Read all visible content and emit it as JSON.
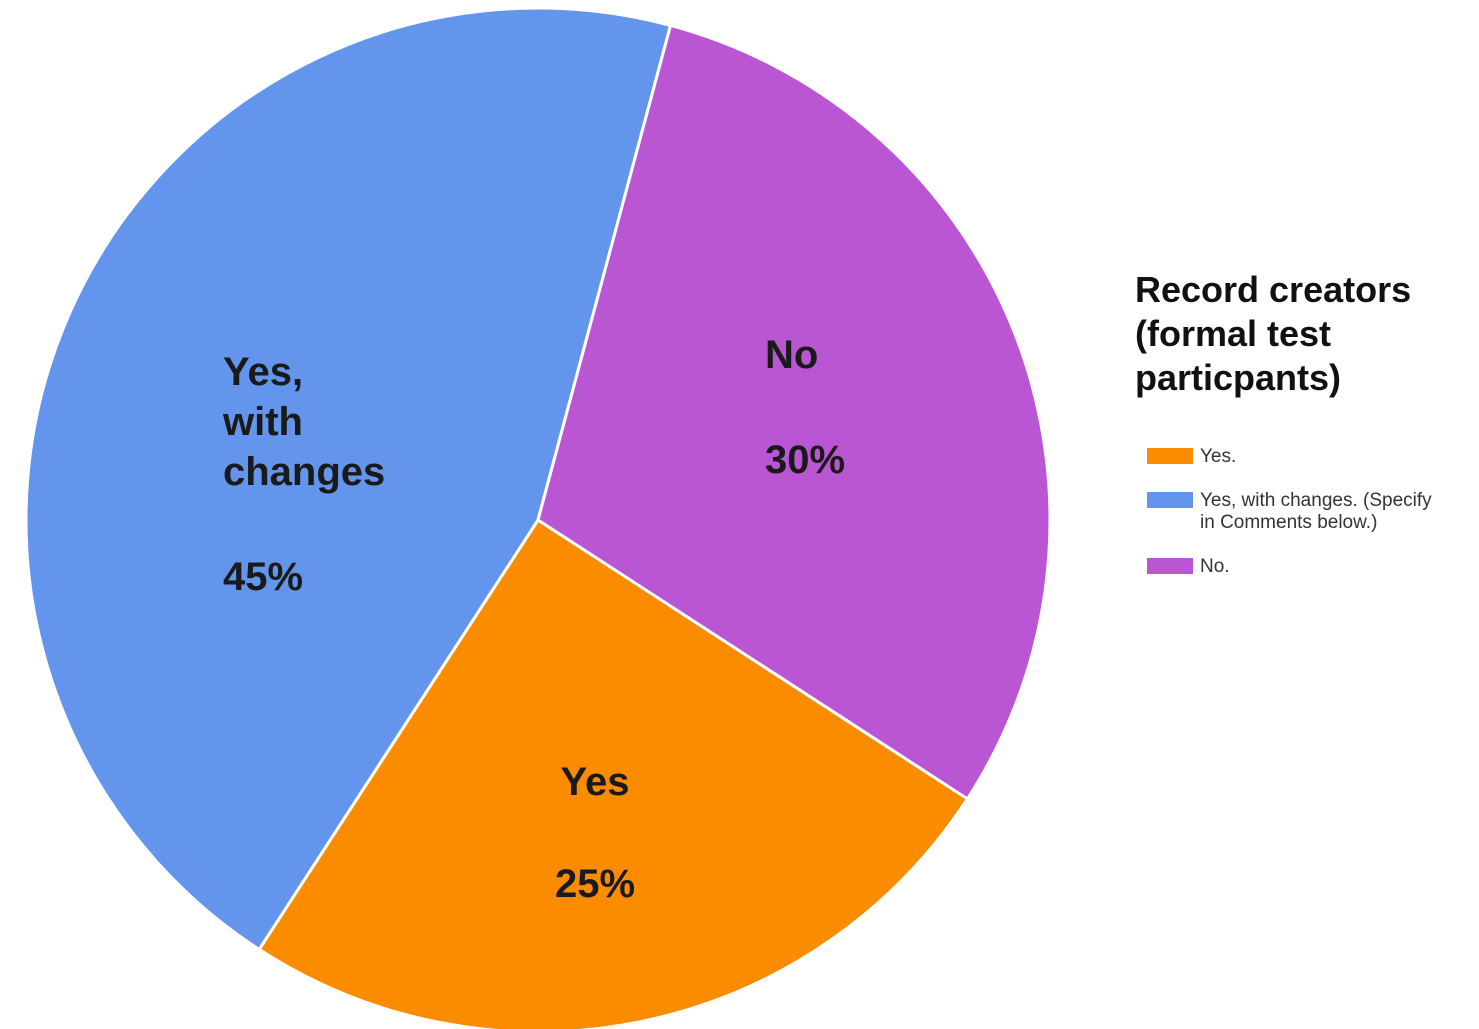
{
  "chart_data": {
    "type": "pie",
    "legend_title": [
      "Record creators",
      "(formal test",
      "particpants)"
    ],
    "legend_position": "right",
    "slices": [
      {
        "legend": [
          "Yes."
        ],
        "label_lines": [
          "Yes"
        ],
        "percent_label": "25%",
        "value": 25,
        "color": "#FB8C00"
      },
      {
        "legend": [
          "Yes, with changes. (Specify",
          "in Comments below.)"
        ],
        "label_lines": [
          "Yes,",
          "with",
          "changes"
        ],
        "percent_label": "45%",
        "value": 45,
        "color": "#6495ED"
      },
      {
        "legend": [
          "No."
        ],
        "label_lines": [
          "No"
        ],
        "percent_label": "30%",
        "value": 30,
        "color": "#BA55D3"
      }
    ]
  }
}
